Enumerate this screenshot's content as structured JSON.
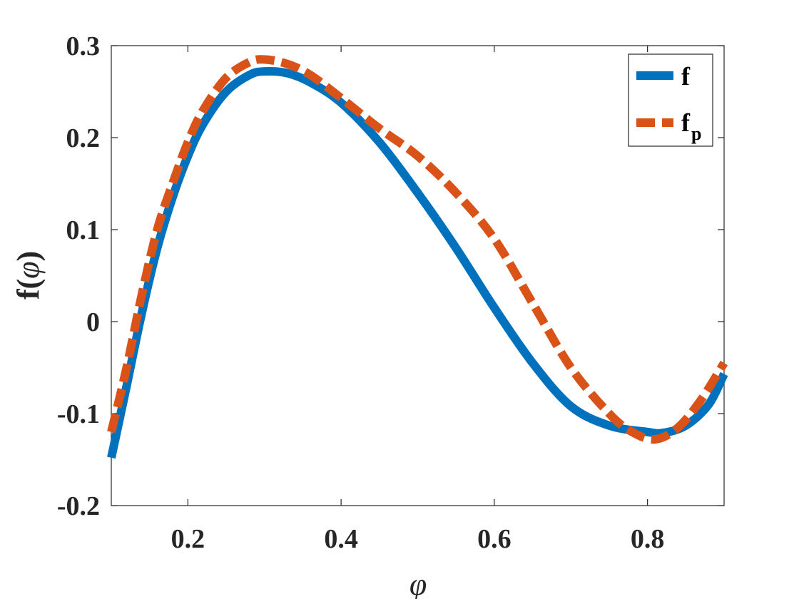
{
  "chart_data": {
    "type": "line",
    "xlabel": "φ",
    "ylabel_main": "f(",
    "ylabel_symbol": "φ",
    "ylabel_close": ")",
    "xlim": [
      0.1,
      0.9
    ],
    "ylim": [
      -0.2,
      0.3
    ],
    "xticks": [
      0.2,
      0.4,
      0.6,
      0.8
    ],
    "xtick_labels": [
      "0.2",
      "0.4",
      "0.6",
      "0.8"
    ],
    "yticks": [
      -0.2,
      -0.1,
      0,
      0.1,
      0.2,
      0.3
    ],
    "ytick_labels": [
      "-0.2",
      "-0.1",
      "0",
      "0.1",
      "0.2",
      "0.3"
    ],
    "grid": false,
    "legend_position": "top-right",
    "series": [
      {
        "name": "f",
        "style": "solid",
        "color": "#0072BD",
        "x": [
          0.1,
          0.12,
          0.14,
          0.16,
          0.18,
          0.2,
          0.22,
          0.25,
          0.28,
          0.3,
          0.33,
          0.36,
          0.4,
          0.45,
          0.5,
          0.55,
          0.6,
          0.65,
          0.7,
          0.75,
          0.8,
          0.82,
          0.85,
          0.88,
          0.9
        ],
        "y": [
          -0.148,
          -0.07,
          0.01,
          0.08,
          0.135,
          0.18,
          0.215,
          0.25,
          0.268,
          0.272,
          0.27,
          0.26,
          0.238,
          0.195,
          0.14,
          0.08,
          0.015,
          -0.045,
          -0.092,
          -0.113,
          -0.12,
          -0.121,
          -0.113,
          -0.09,
          -0.057
        ]
      },
      {
        "name": "f",
        "name_sub": "p",
        "style": "dashed",
        "color": "#D95319",
        "x": [
          0.1,
          0.12,
          0.14,
          0.16,
          0.18,
          0.2,
          0.22,
          0.25,
          0.28,
          0.3,
          0.33,
          0.36,
          0.4,
          0.45,
          0.5,
          0.55,
          0.6,
          0.65,
          0.7,
          0.75,
          0.78,
          0.81,
          0.84,
          0.87,
          0.9
        ],
        "y": [
          -0.12,
          -0.05,
          0.03,
          0.1,
          0.15,
          0.195,
          0.23,
          0.265,
          0.282,
          0.285,
          0.28,
          0.268,
          0.243,
          0.21,
          0.18,
          0.14,
          0.09,
          0.02,
          -0.05,
          -0.1,
          -0.12,
          -0.128,
          -0.115,
          -0.085,
          -0.045
        ]
      }
    ]
  }
}
